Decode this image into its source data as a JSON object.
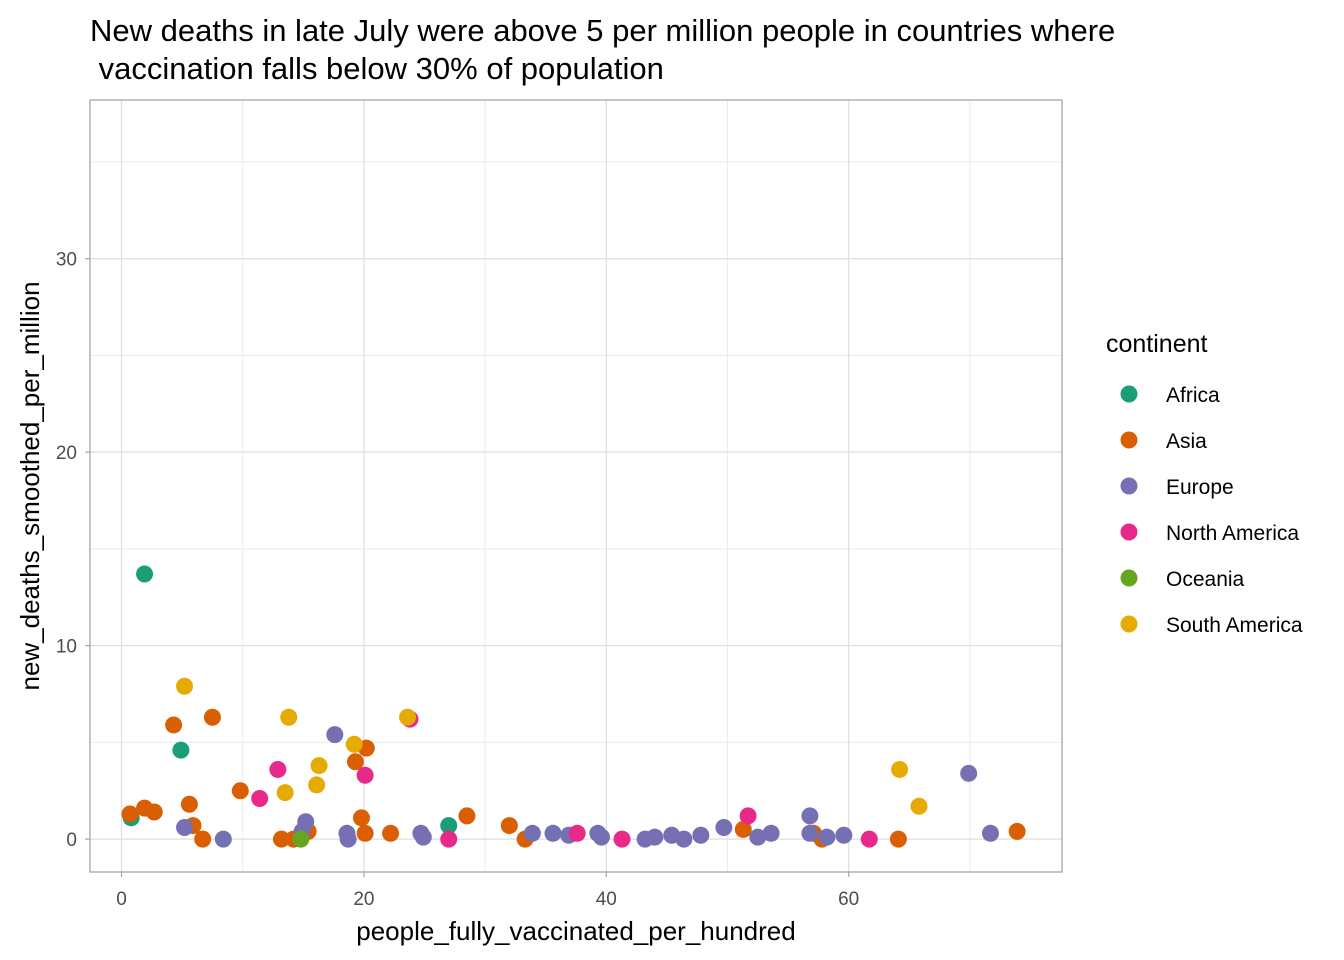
{
  "chart_data": {
    "type": "scatter",
    "title_lines": [
      "New deaths in late July were above 5 per million people in countries where",
      " vaccination falls below 30% of population"
    ],
    "xlabel": "people_fully_vaccinated_per_hundred",
    "ylabel": "new_deaths_smoothed_per_million",
    "xlim": [
      -2.6,
      77.6
    ],
    "ylim": [
      -1.7,
      38.2
    ],
    "x_ticks": [
      0,
      20,
      40,
      60
    ],
    "y_ticks": [
      0,
      10,
      20,
      30
    ],
    "x_minor": [
      10,
      30,
      50,
      70
    ],
    "y_minor": [
      5,
      15,
      25,
      35
    ],
    "grid": true,
    "legend": {
      "title": "continent",
      "position": "right",
      "entries": [
        {
          "name": "Africa",
          "color": "#1b9e77"
        },
        {
          "name": "Asia",
          "color": "#d95f02"
        },
        {
          "name": "Europe",
          "color": "#7570b3"
        },
        {
          "name": "North America",
          "color": "#e7298a"
        },
        {
          "name": "Oceania",
          "color": "#66a61e"
        },
        {
          "name": "South America",
          "color": "#e6ab02"
        }
      ]
    },
    "series": [
      {
        "name": "Africa",
        "color": "#1b9e77",
        "points": [
          [
            1.9,
            13.7
          ],
          [
            4.9,
            4.6
          ],
          [
            0.8,
            1.1
          ],
          [
            27.0,
            0.7
          ]
        ]
      },
      {
        "name": "Asia",
        "color": "#d95f02",
        "points": [
          [
            4.3,
            5.9
          ],
          [
            7.5,
            6.3
          ],
          [
            0.7,
            1.3
          ],
          [
            1.9,
            1.6
          ],
          [
            2.7,
            1.4
          ],
          [
            5.6,
            1.8
          ],
          [
            5.9,
            0.7
          ],
          [
            6.7,
            0.0
          ],
          [
            9.8,
            2.5
          ],
          [
            19.3,
            4.0
          ],
          [
            20.2,
            4.7
          ],
          [
            19.8,
            1.1
          ],
          [
            20.1,
            0.3
          ],
          [
            22.2,
            0.3
          ],
          [
            13.2,
            0.0
          ],
          [
            14.2,
            0.0
          ],
          [
            15.4,
            0.4
          ],
          [
            28.5,
            1.2
          ],
          [
            32.0,
            0.7
          ],
          [
            33.3,
            0.0
          ],
          [
            51.3,
            0.5
          ],
          [
            57.1,
            0.3
          ],
          [
            57.8,
            0.0
          ],
          [
            64.1,
            0.0
          ],
          [
            73.9,
            0.4
          ]
        ]
      },
      {
        "name": "Europe",
        "color": "#7570b3",
        "points": [
          [
            5.2,
            0.6
          ],
          [
            8.4,
            0.0
          ],
          [
            14.9,
            0.4
          ],
          [
            15.2,
            0.9
          ],
          [
            17.6,
            5.4
          ],
          [
            18.6,
            0.3
          ],
          [
            18.7,
            0.0
          ],
          [
            24.7,
            0.3
          ],
          [
            24.9,
            0.1
          ],
          [
            33.9,
            0.3
          ],
          [
            35.6,
            0.3
          ],
          [
            36.9,
            0.2
          ],
          [
            39.3,
            0.3
          ],
          [
            39.6,
            0.1
          ],
          [
            43.2,
            0.0
          ],
          [
            44.0,
            0.1
          ],
          [
            45.4,
            0.2
          ],
          [
            46.4,
            0.0
          ],
          [
            47.8,
            0.2
          ],
          [
            49.7,
            0.6
          ],
          [
            52.5,
            0.1
          ],
          [
            53.6,
            0.3
          ],
          [
            56.8,
            1.2
          ],
          [
            56.8,
            0.3
          ],
          [
            58.2,
            0.1
          ],
          [
            59.6,
            0.2
          ],
          [
            69.9,
            3.4
          ],
          [
            71.7,
            0.3
          ]
        ]
      },
      {
        "name": "North America",
        "color": "#e7298a",
        "points": [
          [
            12.9,
            3.6
          ],
          [
            11.4,
            2.1
          ],
          [
            23.8,
            6.2
          ],
          [
            20.1,
            3.3
          ],
          [
            27.0,
            0.0
          ],
          [
            37.6,
            0.3
          ],
          [
            41.3,
            0.0
          ],
          [
            51.7,
            1.2
          ],
          [
            61.7,
            0.0
          ]
        ]
      },
      {
        "name": "Oceania",
        "color": "#66a61e",
        "points": [
          [
            14.8,
            0.0
          ]
        ]
      },
      {
        "name": "South America",
        "color": "#e6ab02",
        "points": [
          [
            5.2,
            7.9
          ],
          [
            13.8,
            6.3
          ],
          [
            23.6,
            6.3
          ],
          [
            19.2,
            4.9
          ],
          [
            16.3,
            3.8
          ],
          [
            16.1,
            2.8
          ],
          [
            13.5,
            2.4
          ],
          [
            64.2,
            3.6
          ],
          [
            65.8,
            1.7
          ]
        ]
      }
    ]
  }
}
